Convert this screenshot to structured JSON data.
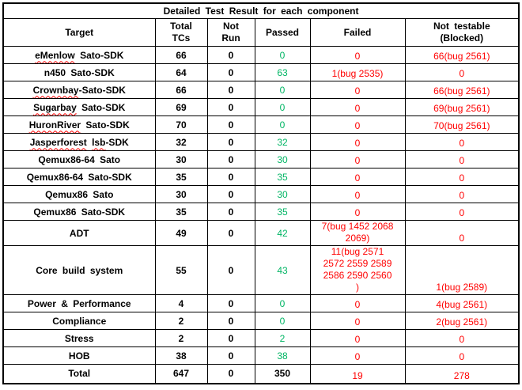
{
  "colors": {
    "pass_green": "#00b564",
    "fail_red": "#ff0000",
    "text_black": "#000000",
    "border_black": "#000000"
  },
  "table": {
    "title": "Detailed Test Result for each component",
    "columns": [
      {
        "key": "target",
        "label": "Target"
      },
      {
        "key": "total-tcs",
        "label": "Total\nTCs"
      },
      {
        "key": "not-run",
        "label": "Not\nRun"
      },
      {
        "key": "passed",
        "label": "Passed"
      },
      {
        "key": "failed",
        "label": "Failed"
      },
      {
        "key": "not-testable",
        "label": "Not testable\n(Blocked)"
      }
    ],
    "rows": [
      {
        "target_parts": [
          {
            "t": "eMenlow",
            "sp": true
          },
          {
            "t": " Sato-SDK"
          }
        ],
        "total": "66",
        "not_run": "0",
        "passed": "0",
        "failed": "0",
        "not_testable": "66(bug 2561)"
      },
      {
        "target_parts": [
          {
            "t": "n450 Sato-SDK"
          }
        ],
        "total": "64",
        "not_run": "0",
        "passed": "63",
        "failed": "1(bug 2535)",
        "not_testable": "0"
      },
      {
        "target_parts": [
          {
            "t": "Crownbay",
            "sp": true
          },
          {
            "t": "-Sato-SDK"
          }
        ],
        "total": "66",
        "not_run": "0",
        "passed": "0",
        "failed": "0",
        "not_testable": "66(bug 2561)"
      },
      {
        "target_parts": [
          {
            "t": "Sugarbay",
            "sp": true
          },
          {
            "t": " Sato-SDK"
          }
        ],
        "total": "69",
        "not_run": "0",
        "passed": "0",
        "failed": "0",
        "not_testable": "69(bug 2561)"
      },
      {
        "target_parts": [
          {
            "t": "HuronRiver",
            "sp": true
          },
          {
            "t": " Sato-SDK"
          }
        ],
        "total": "70",
        "not_run": "0",
        "passed": "0",
        "failed": "0",
        "not_testable": "70(bug 2561)"
      },
      {
        "target_parts": [
          {
            "t": "Jasperforest",
            "sp": true
          },
          {
            "t": " "
          },
          {
            "t": "lsb",
            "sp": true
          },
          {
            "t": "-SDK"
          }
        ],
        "total": "32",
        "not_run": "0",
        "passed": "32",
        "failed": "0",
        "not_testable": "0"
      },
      {
        "target_parts": [
          {
            "t": "Qemux86-64 Sato"
          }
        ],
        "total": "30",
        "not_run": "0",
        "passed": "30",
        "failed": "0",
        "not_testable": "0"
      },
      {
        "target_parts": [
          {
            "t": "Qemux86-64 Sato-SDK"
          }
        ],
        "total": "35",
        "not_run": "0",
        "passed": "35",
        "failed": "0",
        "not_testable": "0"
      },
      {
        "target_parts": [
          {
            "t": "Qemux86 Sato"
          }
        ],
        "total": "30",
        "not_run": "0",
        "passed": "30",
        "failed": "0",
        "not_testable": "0"
      },
      {
        "target_parts": [
          {
            "t": "Qemux86 Sato-SDK"
          }
        ],
        "total": "35",
        "not_run": "0",
        "passed": "35",
        "failed": "0",
        "not_testable": "0"
      },
      {
        "target_parts": [
          {
            "t": "ADT"
          }
        ],
        "total": "49",
        "not_run": "0",
        "passed": "42",
        "failed": "7(bug 1452 2068\n2069)",
        "not_testable": "0"
      },
      {
        "target_parts": [
          {
            "t": "Core build system"
          }
        ],
        "total": "55",
        "not_run": "0",
        "passed": "43",
        "failed": "11(bug 2571\n2572 2559  2589\n2586 2590  2560\n)",
        "not_testable": "1(bug 2589)"
      },
      {
        "target_parts": [
          {
            "t": "Power & Performance"
          }
        ],
        "total": "4",
        "not_run": "0",
        "passed": "0",
        "failed": "0",
        "not_testable": "4(bug 2561)"
      },
      {
        "target_parts": [
          {
            "t": "Compliance"
          }
        ],
        "total": "2",
        "not_run": "0",
        "passed": "0",
        "failed": "0",
        "not_testable": "2(bug 2561)"
      },
      {
        "target_parts": [
          {
            "t": "Stress"
          }
        ],
        "total": "2",
        "not_run": "0",
        "passed": "2",
        "failed": "0",
        "not_testable": "0"
      },
      {
        "target_parts": [
          {
            "t": "HOB"
          }
        ],
        "total": "38",
        "not_run": "0",
        "passed": "38",
        "failed": "0",
        "not_testable": "0"
      },
      {
        "target_parts": [
          {
            "t": "Total"
          }
        ],
        "is_total": true,
        "total": "647",
        "not_run": "0",
        "passed": "350",
        "failed": "19",
        "not_testable": "278"
      }
    ]
  }
}
